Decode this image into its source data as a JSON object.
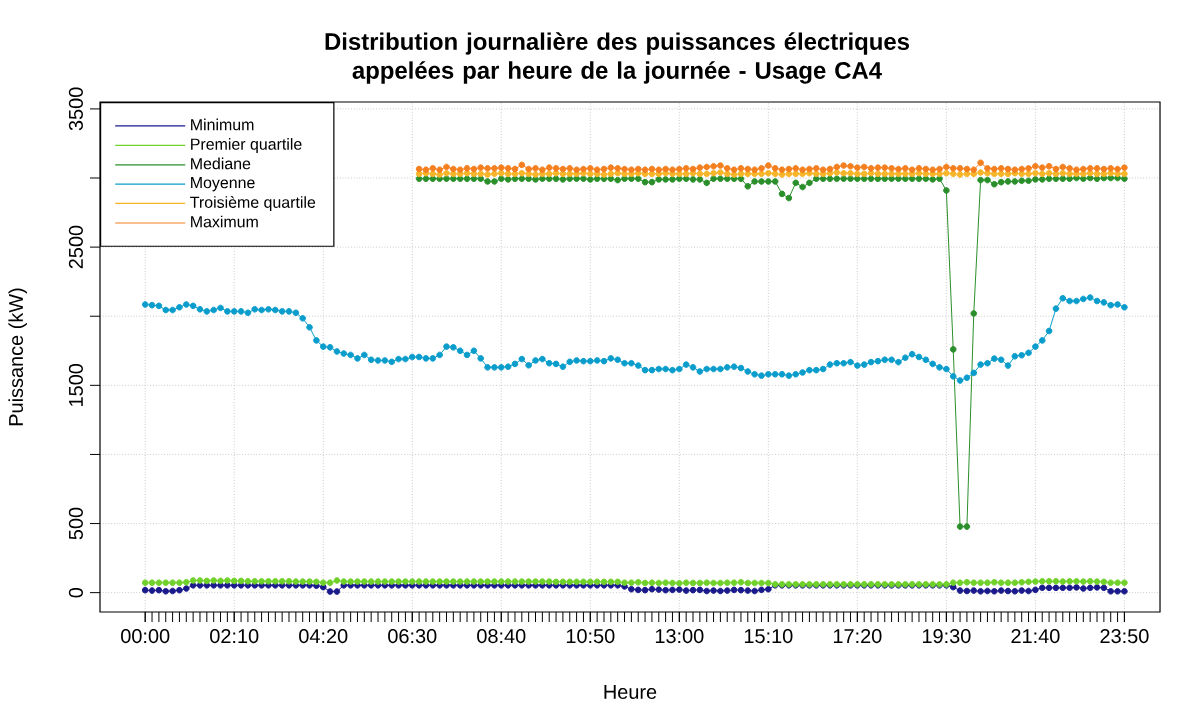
{
  "chart_data": {
    "type": "line",
    "title": "Distribution journalière des puissances électriques appelées par heure de la journée - Usage CA4",
    "xlabel": "Heure",
    "ylabel": "Puissance (kW)",
    "categories": [
      "00:00",
      null,
      null,
      null,
      null,
      null,
      null,
      null,
      null,
      null,
      null,
      null,
      null,
      "02:10",
      null,
      null,
      null,
      null,
      null,
      null,
      null,
      null,
      null,
      null,
      null,
      null,
      "04:20",
      null,
      null,
      null,
      null,
      null,
      null,
      null,
      null,
      null,
      null,
      null,
      null,
      "06:30",
      null,
      null,
      null,
      null,
      null,
      null,
      null,
      null,
      null,
      null,
      null,
      null,
      "08:40",
      null,
      null,
      null,
      null,
      null,
      null,
      null,
      null,
      null,
      null,
      null,
      null,
      "10:50",
      null,
      null,
      null,
      null,
      null,
      null,
      null,
      null,
      null,
      null,
      null,
      null,
      "13:00",
      null,
      null,
      null,
      null,
      null,
      null,
      null,
      null,
      null,
      null,
      null,
      null,
      "15:10",
      null,
      null,
      null,
      null,
      null,
      null,
      null,
      null,
      null,
      null,
      null,
      null,
      "17:20",
      null,
      null,
      null,
      null,
      null,
      null,
      null,
      null,
      null,
      null,
      null,
      null,
      "19:30",
      null,
      null,
      null,
      null,
      null,
      null,
      null,
      null,
      null,
      null,
      null,
      null,
      "21:40",
      null,
      null,
      null,
      null,
      null,
      null,
      null,
      null,
      null,
      null,
      null,
      null,
      "23:50"
    ],
    "series": [
      {
        "name": "Minimum",
        "color": "#1a1a8c",
        "values": [
          18,
          15,
          18,
          10,
          12,
          18,
          30,
          53,
          53,
          53,
          53,
          53,
          53,
          53,
          53,
          53,
          53,
          53,
          53,
          53,
          53,
          53,
          53,
          53,
          53,
          50,
          40,
          8,
          8,
          53,
          53,
          53,
          53,
          53,
          53,
          53,
          53,
          53,
          53,
          53,
          53,
          53,
          53,
          53,
          53,
          53,
          53,
          53,
          53,
          53,
          53,
          53,
          53,
          53,
          53,
          53,
          53,
          53,
          53,
          53,
          53,
          53,
          53,
          53,
          53,
          53,
          53,
          53,
          53,
          53,
          45,
          25,
          20,
          18,
          25,
          22,
          18,
          20,
          22,
          15,
          18,
          20,
          12,
          15,
          12,
          15,
          20,
          18,
          15,
          12,
          20,
          25,
          53,
          53,
          53,
          53,
          53,
          53,
          53,
          53,
          53,
          53,
          53,
          53,
          53,
          53,
          53,
          53,
          53,
          53,
          53,
          53,
          53,
          53,
          53,
          53,
          53,
          53,
          40,
          15,
          12,
          15,
          10,
          12,
          10,
          15,
          12,
          10,
          15,
          12,
          20,
          35,
          35,
          35,
          35,
          35,
          38,
          30,
          35,
          38,
          35,
          10,
          10,
          10
        ]
      },
      {
        "name": "Premier quartile",
        "color": "#6fd12a",
        "values": [
          72,
          72,
          72,
          72,
          72,
          72,
          75,
          88,
          88,
          85,
          88,
          85,
          88,
          85,
          85,
          82,
          82,
          82,
          82,
          82,
          82,
          82,
          80,
          80,
          80,
          78,
          72,
          72,
          88,
          80,
          80,
          80,
          80,
          80,
          80,
          80,
          80,
          80,
          80,
          80,
          80,
          80,
          80,
          80,
          80,
          80,
          80,
          80,
          80,
          80,
          80,
          80,
          80,
          80,
          80,
          80,
          80,
          80,
          80,
          80,
          78,
          78,
          78,
          78,
          78,
          78,
          78,
          78,
          78,
          78,
          72,
          72,
          75,
          70,
          72,
          70,
          72,
          70,
          68,
          72,
          70,
          70,
          72,
          70,
          70,
          72,
          72,
          75,
          70,
          70,
          70,
          70,
          60,
          60,
          60,
          60,
          60,
          60,
          60,
          60,
          60,
          60,
          60,
          60,
          60,
          60,
          60,
          60,
          60,
          60,
          60,
          60,
          60,
          60,
          60,
          60,
          60,
          60,
          72,
          72,
          75,
          72,
          72,
          72,
          75,
          72,
          72,
          72,
          75,
          78,
          80,
          82,
          82,
          82,
          80,
          82,
          82,
          80,
          82,
          80,
          78,
          72,
          72,
          72
        ]
      },
      {
        "name": "Mediane",
        "color": "#2a8f2a",
        "values": [
          null,
          null,
          null,
          null,
          null,
          null,
          null,
          null,
          null,
          null,
          null,
          null,
          null,
          null,
          null,
          null,
          null,
          null,
          null,
          null,
          null,
          null,
          null,
          null,
          null,
          null,
          null,
          null,
          null,
          null,
          null,
          null,
          null,
          null,
          null,
          null,
          null,
          null,
          null,
          null,
          2995,
          2995,
          2995,
          2995,
          2995,
          2995,
          2995,
          2995,
          2995,
          2995,
          2975,
          2975,
          2995,
          2990,
          2995,
          2995,
          2995,
          2990,
          2995,
          2995,
          2995,
          2990,
          2995,
          2995,
          2995,
          2990,
          2995,
          2995,
          2995,
          2985,
          2995,
          2995,
          2995,
          2970,
          2970,
          2990,
          2990,
          2990,
          2995,
          2995,
          2990,
          2990,
          2965,
          2995,
          2995,
          2995,
          2995,
          2995,
          2940,
          2975,
          2975,
          2975,
          2975,
          2885,
          2855,
          2965,
          2935,
          2965,
          2995,
          2995,
          2995,
          2995,
          2995,
          2995,
          2995,
          2995,
          2995,
          2995,
          2995,
          2995,
          2995,
          2995,
          2995,
          2995,
          2995,
          2990,
          2995,
          2910,
          1760,
          478,
          478,
          2020,
          2985,
          2985,
          2955,
          2970,
          2975,
          2975,
          2980,
          2980,
          2990,
          2990,
          2995,
          2995,
          2995,
          2995,
          3000,
          2995,
          3000,
          2995,
          3000,
          3000,
          3000,
          2995
        ]
      },
      {
        "name": "Moyenne",
        "color": "#0a9dcc",
        "values": [
          2085,
          2080,
          2075,
          2045,
          2045,
          2065,
          2085,
          2075,
          2050,
          2035,
          2045,
          2060,
          2035,
          2035,
          2035,
          2025,
          2050,
          2045,
          2050,
          2045,
          2035,
          2035,
          2025,
          1985,
          1920,
          1825,
          1780,
          1775,
          1745,
          1730,
          1720,
          1695,
          1720,
          1685,
          1680,
          1680,
          1670,
          1690,
          1690,
          1705,
          1705,
          1695,
          1695,
          1720,
          1780,
          1775,
          1750,
          1720,
          1750,
          1695,
          1630,
          1630,
          1630,
          1635,
          1655,
          1690,
          1645,
          1680,
          1690,
          1660,
          1655,
          1635,
          1670,
          1680,
          1675,
          1675,
          1680,
          1675,
          1695,
          1685,
          1660,
          1660,
          1643,
          1610,
          1610,
          1618,
          1618,
          1610,
          1618,
          1650,
          1630,
          1600,
          1618,
          1618,
          1618,
          1630,
          1635,
          1625,
          1600,
          1580,
          1570,
          1580,
          1580,
          1580,
          1570,
          1580,
          1593,
          1610,
          1610,
          1618,
          1650,
          1660,
          1660,
          1668,
          1643,
          1650,
          1668,
          1675,
          1685,
          1685,
          1668,
          1700,
          1725,
          1705,
          1685,
          1655,
          1630,
          1618,
          1565,
          1535,
          1555,
          1590,
          1650,
          1660,
          1693,
          1685,
          1643,
          1710,
          1718,
          1735,
          1780,
          1825,
          1893,
          2055,
          2130,
          2110,
          2110,
          2125,
          2135,
          2110,
          2100,
          2080,
          2085,
          2065
        ]
      },
      {
        "name": "Troisième quartile",
        "color": "#f7b52a",
        "values": [
          null,
          null,
          null,
          null,
          null,
          null,
          null,
          null,
          null,
          null,
          null,
          null,
          null,
          null,
          null,
          null,
          null,
          null,
          null,
          null,
          null,
          null,
          null,
          null,
          null,
          null,
          null,
          null,
          null,
          null,
          null,
          null,
          null,
          null,
          null,
          null,
          null,
          null,
          null,
          null,
          3030,
          3035,
          3030,
          3025,
          3035,
          3030,
          3030,
          3035,
          3030,
          3030,
          3025,
          3030,
          3035,
          3030,
          3030,
          3035,
          3030,
          3025,
          3030,
          3030,
          3035,
          3030,
          3030,
          3030,
          3035,
          3030,
          3030,
          3025,
          3030,
          3035,
          3030,
          3030,
          3035,
          3030,
          3030,
          3030,
          3035,
          3030,
          3030,
          3030,
          3035,
          3030,
          3030,
          3035,
          3040,
          3030,
          3025,
          3030,
          3030,
          3030,
          3030,
          3035,
          3030,
          3025,
          3030,
          3030,
          3030,
          3035,
          3030,
          3030,
          3035,
          3040,
          3035,
          3035,
          3030,
          3030,
          3035,
          3030,
          3030,
          3030,
          3030,
          3030,
          3030,
          3035,
          3030,
          3030,
          3030,
          3035,
          3030,
          3025,
          3030,
          3030,
          3040,
          3035,
          3030,
          3030,
          3030,
          3035,
          3030,
          3030,
          3035,
          3030,
          3035,
          3030,
          3035,
          3030,
          3030,
          3030,
          3035,
          3030,
          3030,
          3035,
          3030,
          3030
        ]
      },
      {
        "name": "Maximum",
        "color": "#f47f1f",
        "values": [
          null,
          null,
          null,
          null,
          null,
          null,
          null,
          null,
          null,
          null,
          null,
          null,
          null,
          null,
          null,
          null,
          null,
          null,
          null,
          null,
          null,
          null,
          null,
          null,
          null,
          null,
          null,
          null,
          null,
          null,
          null,
          null,
          null,
          null,
          null,
          null,
          null,
          null,
          null,
          null,
          3065,
          3060,
          3070,
          3060,
          3080,
          3065,
          3060,
          3070,
          3065,
          3075,
          3070,
          3070,
          3075,
          3070,
          3065,
          3095,
          3065,
          3070,
          3060,
          3075,
          3070,
          3065,
          3070,
          3060,
          3065,
          3070,
          3060,
          3065,
          3075,
          3070,
          3065,
          3060,
          3065,
          3060,
          3065,
          3060,
          3065,
          3060,
          3065,
          3070,
          3065,
          3075,
          3080,
          3085,
          3090,
          3070,
          3060,
          3070,
          3065,
          3060,
          3070,
          3090,
          3070,
          3060,
          3065,
          3070,
          3060,
          3065,
          3070,
          3060,
          3065,
          3080,
          3090,
          3085,
          3075,
          3080,
          3070,
          3075,
          3075,
          3070,
          3065,
          3070,
          3060,
          3070,
          3065,
          3060,
          3065,
          3080,
          3070,
          3070,
          3065,
          3060,
          3110,
          3070,
          3065,
          3070,
          3065,
          3060,
          3065,
          3070,
          3085,
          3075,
          3085,
          3065,
          3080,
          3070,
          3060,
          3065,
          3070,
          3070,
          3065,
          3070,
          3065,
          3075
        ]
      }
    ],
    "ylim": [
      -140,
      3550
    ],
    "yticks": [
      0,
      500,
      {
        "value": 1000,
        "label": null
      },
      1500,
      {
        "value": 2000,
        "label": null
      },
      2500,
      {
        "value": 3000,
        "label": null
      },
      3500
    ],
    "grid": true,
    "legend": "top left",
    "marker": "circle",
    "line_style": "solid"
  }
}
